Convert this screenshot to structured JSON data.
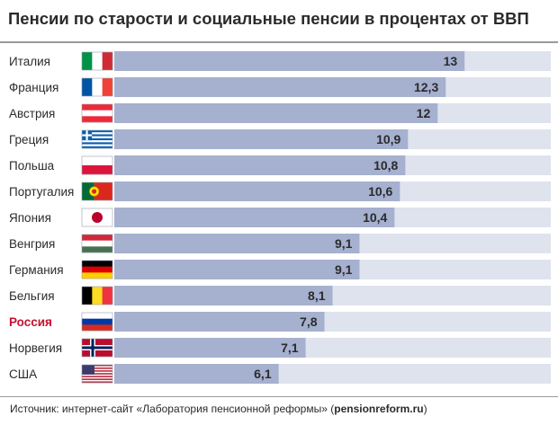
{
  "title": "Пенсии по старости и социальные пенсии в процентах от ВВП",
  "source": {
    "prefix": "Источник: интернет-сайт «Лаборатория пенсионной реформы» (",
    "site": "pensionreform.ru",
    "suffix": ")"
  },
  "colors": {
    "track": "#dfe3ee",
    "bar": "#a6b0cf",
    "label": "#2b2b2b",
    "highlight": "#c8102e"
  },
  "chart_data": {
    "type": "bar",
    "orientation": "horizontal",
    "title": "Пенсии по старости и социальные пенсии в процентах от ВВП",
    "xlabel": "",
    "ylabel": "",
    "xlim": [
      0,
      16.2
    ],
    "grid": false,
    "legend": "none",
    "highlighted": "Россия",
    "categories": [
      "Италия",
      "Франция",
      "Австрия",
      "Греция",
      "Польша",
      "Португалия",
      "Япония",
      "Венгрия",
      "Германия",
      "Бельгия",
      "Россия",
      "Норвегия",
      "США"
    ],
    "values": [
      13,
      12.3,
      12,
      10.9,
      10.8,
      10.6,
      10.4,
      9.1,
      9.1,
      8.1,
      7.8,
      7.1,
      6.1
    ],
    "value_labels": [
      "13",
      "12,3",
      "12",
      "10,9",
      "10,8",
      "10,6",
      "10,4",
      "9,1",
      "9,1",
      "8,1",
      "7,8",
      "7,1",
      "6,1"
    ],
    "flags": [
      "italy-flag-icon",
      "france-flag-icon",
      "austria-flag-icon",
      "greece-flag-icon",
      "poland-flag-icon",
      "portugal-flag-icon",
      "japan-flag-icon",
      "hungary-flag-icon",
      "germany-flag-icon",
      "belgium-flag-icon",
      "russia-flag-icon",
      "norway-flag-icon",
      "usa-flag-icon"
    ]
  }
}
